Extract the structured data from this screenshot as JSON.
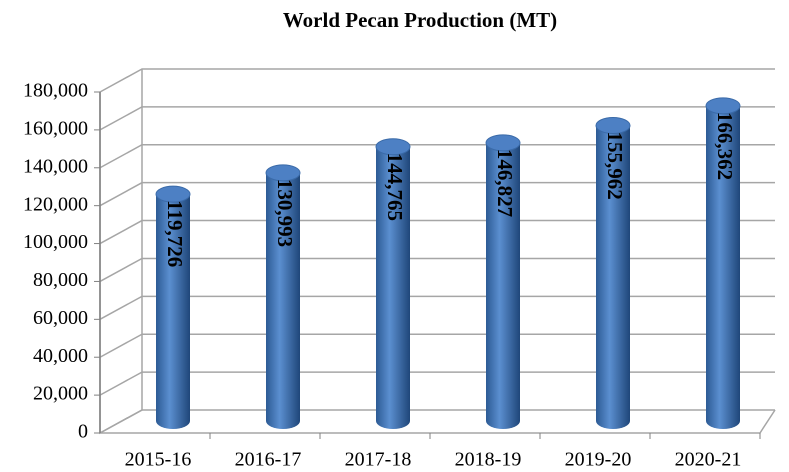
{
  "chart_data": {
    "type": "bar",
    "title": "World Pecan Production (MT)",
    "categories": [
      "2015-16",
      "2016-17",
      "2017-18",
      "2018-19",
      "2019-20",
      "2020-21"
    ],
    "values": [
      119726,
      130993,
      144765,
      146827,
      155962,
      166362
    ],
    "value_labels": [
      "119,726",
      "130,993",
      "144,765",
      "146,827",
      "155,962",
      "166,362"
    ],
    "color": "#4f81bd",
    "ylim": [
      0,
      180000
    ],
    "yticks": [
      0,
      {
        "value": 20000,
        "label": "20,000"
      },
      {
        "value": 40000,
        "label": "40,000"
      },
      {
        "value": 60000,
        "label": "60,000"
      },
      {
        "value": 80000,
        "label": "80,000"
      },
      {
        "value": 100000,
        "label": "100,000"
      },
      {
        "value": 120000,
        "label": "120,000"
      },
      {
        "value": 140000,
        "label": "140,000"
      },
      {
        "value": 160000,
        "label": "160,000"
      },
      {
        "value": 180000,
        "label": "180,000"
      }
    ],
    "grid": true
  }
}
